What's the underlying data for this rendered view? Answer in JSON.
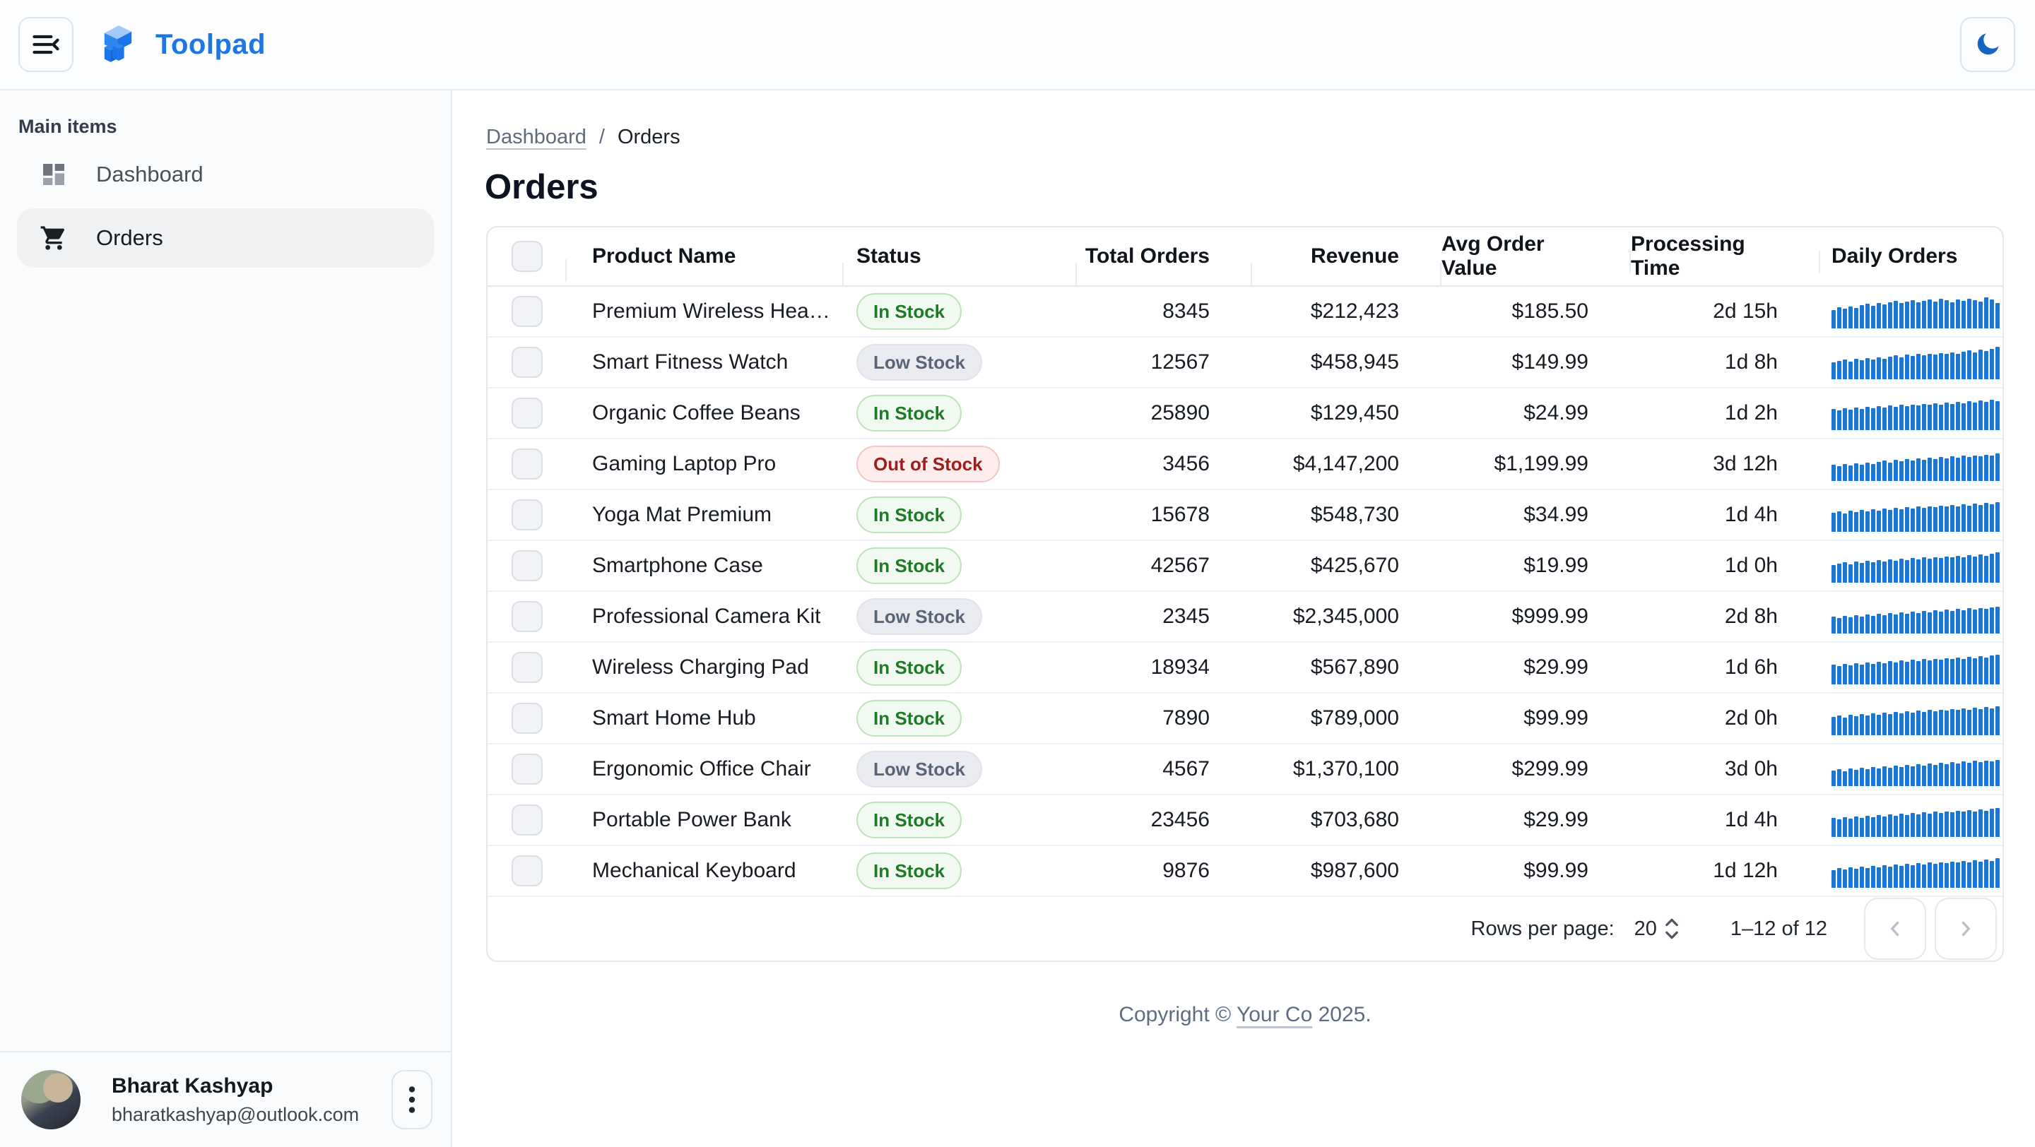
{
  "header": {
    "brand": "Toolpad"
  },
  "sidebar": {
    "section_label": "Main items",
    "items": [
      {
        "label": "Dashboard",
        "selected": false
      },
      {
        "label": "Orders",
        "selected": true
      }
    ],
    "user": {
      "name": "Bharat Kashyap",
      "email": "bharatkashyap@outlook.com"
    }
  },
  "breadcrumb": {
    "parent": "Dashboard",
    "separator": "/",
    "current": "Orders"
  },
  "page": {
    "title": "Orders"
  },
  "table": {
    "columns": [
      "Product Name",
      "Status",
      "Total Orders",
      "Revenue",
      "Avg Order Value",
      "Processing Time",
      "Daily Orders"
    ],
    "rows": [
      {
        "product": "Premium Wireless Headp...",
        "status": "In Stock",
        "status_type": "in",
        "total_orders": "8345",
        "revenue": "$212,423",
        "avg_order_value": "$185.50",
        "processing_time": "2d 15h",
        "spark": [
          55,
          62,
          58,
          65,
          60,
          68,
          72,
          66,
          74,
          70,
          78,
          82,
          76,
          80,
          84,
          78,
          82,
          86,
          80,
          88,
          84,
          78,
          86,
          82,
          88,
          84,
          80,
          92,
          86,
          76
        ]
      },
      {
        "product": "Smart Fitness Watch",
        "status": "Low Stock",
        "status_type": "low",
        "total_orders": "12567",
        "revenue": "$458,945",
        "avg_order_value": "$149.99",
        "processing_time": "1d 8h",
        "spark": [
          50,
          54,
          58,
          52,
          60,
          56,
          62,
          58,
          64,
          60,
          66,
          70,
          64,
          72,
          68,
          74,
          70,
          76,
          72,
          78,
          74,
          80,
          76,
          82,
          86,
          80,
          88,
          84,
          90,
          96
        ]
      },
      {
        "product": "Organic Coffee Beans",
        "status": "In Stock",
        "status_type": "in",
        "total_orders": "25890",
        "revenue": "$129,450",
        "avg_order_value": "$24.99",
        "processing_time": "1d 2h",
        "spark": [
          62,
          58,
          64,
          60,
          66,
          62,
          68,
          64,
          70,
          66,
          72,
          68,
          74,
          70,
          76,
          72,
          78,
          74,
          80,
          76,
          82,
          78,
          84,
          80,
          86,
          82,
          88,
          84,
          90,
          86
        ]
      },
      {
        "product": "Gaming Laptop Pro",
        "status": "Out of Stock",
        "status_type": "out",
        "total_orders": "3456",
        "revenue": "$4,147,200",
        "avg_order_value": "$1,199.99",
        "processing_time": "3d 12h",
        "spark": [
          48,
          44,
          50,
          46,
          52,
          48,
          54,
          50,
          56,
          60,
          54,
          62,
          58,
          64,
          60,
          66,
          62,
          68,
          64,
          70,
          66,
          72,
          68,
          74,
          70,
          76,
          72,
          78,
          74,
          82
        ]
      },
      {
        "product": "Yoga Mat Premium",
        "status": "In Stock",
        "status_type": "in",
        "total_orders": "15678",
        "revenue": "$548,730",
        "avg_order_value": "$34.99",
        "processing_time": "1d 4h",
        "spark": [
          56,
          60,
          54,
          62,
          58,
          64,
          60,
          66,
          62,
          68,
          64,
          70,
          66,
          72,
          68,
          74,
          70,
          76,
          72,
          78,
          74,
          80,
          76,
          82,
          78,
          84,
          80,
          86,
          82,
          88
        ]
      },
      {
        "product": "Smartphone Case",
        "status": "In Stock",
        "status_type": "in",
        "total_orders": "42567",
        "revenue": "$425,670",
        "avg_order_value": "$19.99",
        "processing_time": "1d 0h",
        "spark": [
          52,
          56,
          60,
          54,
          62,
          58,
          64,
          60,
          66,
          62,
          68,
          64,
          70,
          66,
          72,
          68,
          74,
          70,
          76,
          72,
          78,
          74,
          80,
          76,
          82,
          78,
          84,
          80,
          86,
          90
        ]
      },
      {
        "product": "Professional Camera Kit",
        "status": "Low Stock",
        "status_type": "low",
        "total_orders": "2345",
        "revenue": "$2,345,000",
        "avg_order_value": "$999.99",
        "processing_time": "2d 8h",
        "spark": [
          50,
          46,
          52,
          48,
          54,
          50,
          56,
          52,
          58,
          54,
          60,
          56,
          62,
          58,
          64,
          60,
          66,
          62,
          68,
          64,
          70,
          66,
          72,
          68,
          74,
          70,
          76,
          72,
          78,
          80
        ]
      },
      {
        "product": "Wireless Charging Pad",
        "status": "In Stock",
        "status_type": "in",
        "total_orders": "18934",
        "revenue": "$567,890",
        "avg_order_value": "$29.99",
        "processing_time": "1d 6h",
        "spark": [
          58,
          54,
          60,
          56,
          62,
          58,
          64,
          60,
          66,
          62,
          68,
          64,
          70,
          66,
          72,
          68,
          74,
          70,
          76,
          72,
          78,
          74,
          80,
          76,
          82,
          78,
          84,
          80,
          86,
          88
        ]
      },
      {
        "product": "Smart Home Hub",
        "status": "In Stock",
        "status_type": "in",
        "total_orders": "7890",
        "revenue": "$789,000",
        "avg_order_value": "$99.99",
        "processing_time": "2d 0h",
        "spark": [
          54,
          58,
          52,
          60,
          56,
          62,
          58,
          64,
          60,
          66,
          62,
          68,
          64,
          70,
          66,
          72,
          68,
          74,
          70,
          76,
          72,
          78,
          74,
          80,
          76,
          82,
          78,
          84,
          80,
          86
        ]
      },
      {
        "product": "Ergonomic Office Chair",
        "status": "Low Stock",
        "status_type": "low",
        "total_orders": "4567",
        "revenue": "$1,370,100",
        "avg_order_value": "$299.99",
        "processing_time": "3d 0h",
        "spark": [
          46,
          50,
          44,
          52,
          48,
          54,
          50,
          56,
          52,
          58,
          54,
          60,
          56,
          62,
          58,
          64,
          60,
          66,
          62,
          68,
          64,
          70,
          66,
          72,
          68,
          74,
          70,
          76,
          72,
          78
        ]
      },
      {
        "product": "Portable Power Bank",
        "status": "In Stock",
        "status_type": "in",
        "total_orders": "23456",
        "revenue": "$703,680",
        "avg_order_value": "$29.99",
        "processing_time": "1d 4h",
        "spark": [
          56,
          52,
          58,
          54,
          60,
          56,
          62,
          58,
          64,
          60,
          66,
          62,
          68,
          64,
          70,
          66,
          72,
          68,
          74,
          70,
          76,
          72,
          78,
          74,
          80,
          76,
          82,
          78,
          84,
          86
        ]
      },
      {
        "product": "Mechanical Keyboard",
        "status": "In Stock",
        "status_type": "in",
        "total_orders": "9876",
        "revenue": "$987,600",
        "avg_order_value": "$99.99",
        "processing_time": "1d 12h",
        "spark": [
          52,
          58,
          54,
          60,
          56,
          62,
          58,
          64,
          60,
          66,
          62,
          68,
          64,
          70,
          66,
          72,
          68,
          74,
          70,
          76,
          72,
          78,
          74,
          80,
          76,
          82,
          78,
          84,
          80,
          88
        ]
      }
    ]
  },
  "pagination": {
    "rows_per_page_label": "Rows per page:",
    "rows_per_page": "20",
    "range": "1–12 of 12"
  },
  "footer": {
    "prefix": "Copyright © ",
    "link_text": "Your Co",
    "suffix": " 2025."
  },
  "colors": {
    "brand_blue": "#1c76e6",
    "sparkline_bar": "#1976d2",
    "moon_icon": "#1565c0",
    "chip_in_stock_text": "#1d7b26",
    "chip_low_stock_text": "#5a6478",
    "chip_out_of_stock_text": "#9e1c1c"
  }
}
